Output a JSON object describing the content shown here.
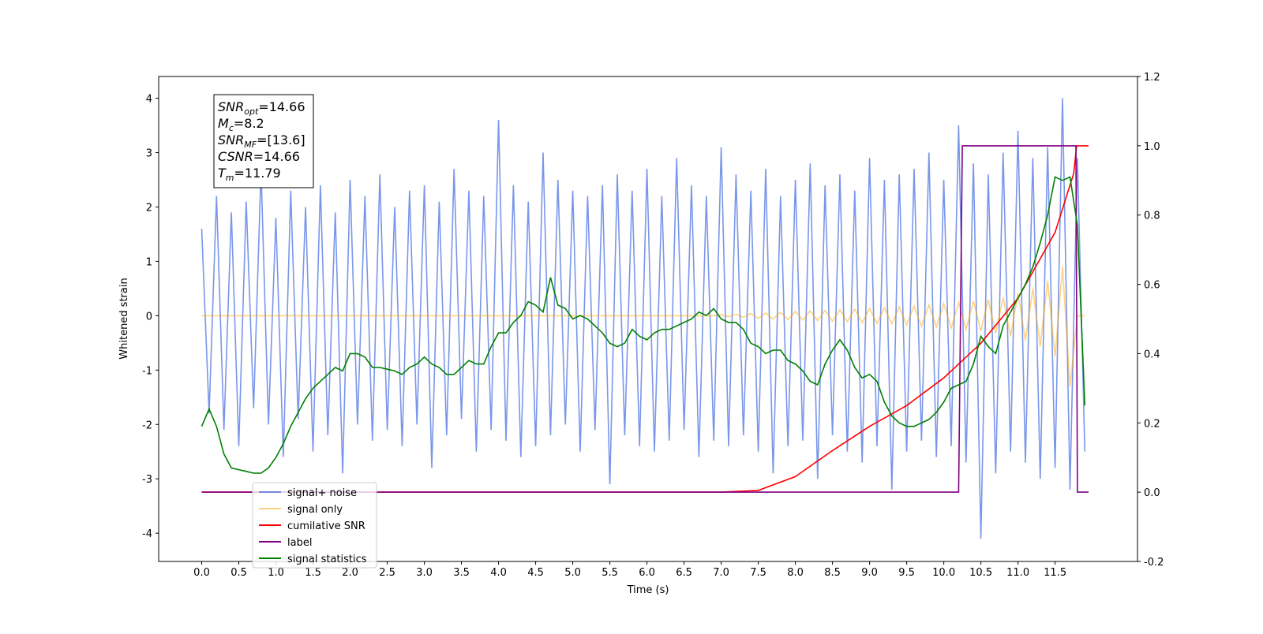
{
  "chart_data": {
    "type": "line",
    "xlabel": "Time (s)",
    "ylabel": "Whitened strain",
    "xlim": [
      -0.58,
      12.61
    ],
    "ylim": [
      -4.52,
      4.4
    ],
    "y2lim": [
      -0.2,
      1.2
    ],
    "xticks": [
      {
        "value": 0,
        "label": "0.0"
      },
      0.5,
      {
        "value": 1,
        "label": "1.0"
      },
      1.5,
      {
        "value": 2,
        "label": "2.0"
      },
      2.5,
      {
        "value": 3,
        "label": "3.0"
      },
      3.5,
      {
        "value": 4,
        "label": "4.0"
      },
      4.5,
      {
        "value": 5,
        "label": "5.0"
      },
      5.5,
      {
        "value": 6,
        "label": "6.0"
      },
      6.5,
      {
        "value": 7,
        "label": "7.0"
      },
      7.5,
      {
        "value": 8,
        "label": "8.0"
      },
      8.5,
      {
        "value": 9,
        "label": "9.0"
      },
      9.5,
      {
        "value": 10,
        "label": "10.0"
      },
      10.5,
      {
        "value": 11,
        "label": "11.0"
      },
      11.5
    ],
    "yticks": [
      -4,
      -3,
      -2,
      -1,
      0,
      1,
      2,
      3,
      4
    ],
    "y2ticks": [
      -0.2,
      {
        "value": 0,
        "label": "0.0"
      },
      0.2,
      0.4,
      0.6,
      0.8,
      {
        "value": 1,
        "label": "1.0"
      },
      1.2
    ],
    "text_box": [
      {
        "name": "SNR",
        "sub": "opt",
        "value": "=14.66"
      },
      {
        "name": "M",
        "sub": "c",
        "value": "=8.2"
      },
      {
        "name": "SNR",
        "sub": "MF",
        "value": "=[13.6]"
      },
      {
        "name": "CSNR",
        "value": "=14.66"
      },
      {
        "name": "T",
        "sub": "m",
        "value": "=11.79"
      }
    ],
    "x": [
      0,
      0.1,
      0.2,
      0.3,
      0.4,
      0.5,
      0.6,
      0.7,
      0.8,
      0.9,
      1,
      1.1,
      1.2,
      1.3,
      1.4,
      1.5,
      1.6,
      1.7,
      1.8,
      1.9,
      2,
      2.1,
      2.2,
      2.3,
      2.4,
      2.5,
      2.6,
      2.7,
      2.8,
      2.9,
      3,
      3.1,
      3.2,
      3.3,
      3.4,
      3.5,
      3.6,
      3.7,
      3.8,
      3.9,
      4,
      4.1,
      4.2,
      4.3,
      4.4,
      4.5,
      4.6,
      4.7,
      4.8,
      4.9,
      5,
      5.1,
      5.2,
      5.3,
      5.4,
      5.5,
      5.6,
      5.7,
      5.8,
      5.9,
      6,
      6.1,
      6.2,
      6.3,
      6.4,
      6.5,
      6.6,
      6.7,
      6.8,
      6.9,
      7,
      7.1,
      7.2,
      7.3,
      7.4,
      7.5,
      7.6,
      7.7,
      7.8,
      7.9,
      8,
      8.1,
      8.2,
      8.3,
      8.4,
      8.5,
      8.6,
      8.7,
      8.8,
      8.9,
      9,
      9.1,
      9.2,
      9.3,
      9.4,
      9.5,
      9.6,
      9.7,
      9.8,
      9.9,
      10,
      10.1,
      10.2,
      10.3,
      10.4,
      10.5,
      10.6,
      10.7,
      10.8,
      10.9,
      11,
      11.1,
      11.2,
      11.3,
      11.4,
      11.5,
      11.6,
      11.7,
      11.8,
      11.9
    ],
    "series": [
      {
        "name": "signal+ noise",
        "color": "royalblue",
        "alpha": 0.7,
        "values": [
          1.6,
          -1.8,
          2.2,
          -2.1,
          1.9,
          -2.4,
          2.1,
          -1.7,
          2.7,
          -2.0,
          1.8,
          -2.6,
          2.3,
          -1.9,
          2.0,
          -2.5,
          2.4,
          -2.2,
          1.9,
          -2.9,
          2.5,
          -2.0,
          2.2,
          -2.3,
          2.6,
          -2.1,
          2.0,
          -2.4,
          2.3,
          -2.0,
          2.4,
          -2.8,
          2.1,
          -2.2,
          2.7,
          -1.9,
          2.3,
          -2.5,
          2.2,
          -2.1,
          3.6,
          -2.3,
          2.4,
          -2.6,
          2.1,
          -2.4,
          3.0,
          -2.2,
          2.5,
          -2.0,
          2.3,
          -2.5,
          2.2,
          -2.1,
          2.4,
          -3.1,
          2.6,
          -2.2,
          2.3,
          -2.4,
          2.7,
          -2.5,
          2.2,
          -2.3,
          2.9,
          -2.1,
          2.4,
          -2.6,
          2.2,
          -2.3,
          3.1,
          -2.4,
          2.6,
          -2.2,
          2.3,
          -2.5,
          2.7,
          -2.9,
          2.2,
          -2.4,
          2.5,
          -2.3,
          2.8,
          -3.0,
          2.4,
          -2.2,
          2.6,
          -2.5,
          2.3,
          -2.7,
          2.9,
          -2.4,
          2.5,
          -3.2,
          2.6,
          -2.5,
          2.7,
          -2.3,
          3.0,
          -2.6,
          2.5,
          -2.4,
          3.5,
          -2.7,
          2.8,
          -4.1,
          2.6,
          -2.9,
          3.0,
          -2.5,
          3.4,
          -2.7,
          2.9,
          -3.0,
          3.1,
          -2.8,
          4.0,
          -3.2,
          2.9,
          -2.5
        ]
      },
      {
        "name": "signal only",
        "color": "orange",
        "alpha": 0.5,
        "values": [
          0,
          0,
          0,
          0,
          0,
          0,
          0,
          0,
          0,
          0,
          0,
          0,
          0,
          0,
          0,
          0,
          0,
          0,
          0,
          0,
          0,
          0,
          0,
          0,
          0,
          0,
          0,
          0,
          0,
          0,
          0,
          0,
          0,
          0,
          0,
          0,
          0,
          0,
          0,
          0,
          0,
          0,
          0,
          0,
          0,
          0,
          0,
          0,
          0,
          0,
          0,
          0,
          0,
          0,
          0,
          0,
          0,
          0,
          0,
          0,
          0,
          0,
          0,
          0,
          0,
          0,
          0,
          0,
          0,
          0,
          0.02,
          -0.02,
          0.03,
          -0.03,
          0.04,
          -0.05,
          0.05,
          -0.06,
          0.06,
          -0.07,
          0.08,
          -0.08,
          0.09,
          -0.09,
          0.1,
          -0.1,
          0.11,
          -0.11,
          0.12,
          -0.13,
          0.13,
          -0.14,
          0.15,
          -0.15,
          0.16,
          -0.17,
          0.18,
          -0.19,
          0.2,
          -0.21,
          0.22,
          -0.23,
          0.24,
          -0.25,
          0.27,
          -0.28,
          0.3,
          -0.32,
          0.34,
          -0.38,
          0.42,
          -0.46,
          0.5,
          -0.56,
          0.64,
          -0.75,
          0.9,
          -1.3,
          0,
          0
        ]
      },
      {
        "name": "cumilative SNR",
        "color": "red",
        "axis": "y2",
        "x": [
          0,
          7,
          7.5,
          8,
          8.5,
          9,
          9.5,
          10,
          10.5,
          11,
          11.5,
          11.75,
          11.79,
          11.95
        ],
        "values": [
          0,
          0,
          0.005,
          0.045,
          0.12,
          0.19,
          0.25,
          0.33,
          0.43,
          0.56,
          0.75,
          0.92,
          1,
          1
        ]
      },
      {
        "name": "label",
        "color": "purple",
        "axis": "y2",
        "x": [
          0,
          10.2,
          10.25,
          11.78,
          11.8,
          11.95
        ],
        "values": [
          0,
          0,
          1,
          1,
          0,
          0
        ]
      },
      {
        "name": "signal statistics",
        "color": "green",
        "axis": "y2",
        "values": [
          0.19,
          0.24,
          0.19,
          0.11,
          0.07,
          0.065,
          0.06,
          0.055,
          0.055,
          0.07,
          0.1,
          0.14,
          0.19,
          0.23,
          0.27,
          0.3,
          0.32,
          0.34,
          0.36,
          0.35,
          0.4,
          0.4,
          0.39,
          0.36,
          0.36,
          0.355,
          0.35,
          0.34,
          0.36,
          0.37,
          0.39,
          0.37,
          0.36,
          0.34,
          0.34,
          0.36,
          0.38,
          0.37,
          0.37,
          0.42,
          0.46,
          0.46,
          0.49,
          0.51,
          0.55,
          0.54,
          0.52,
          0.62,
          0.54,
          0.53,
          0.5,
          0.51,
          0.5,
          0.48,
          0.46,
          0.43,
          0.42,
          0.43,
          0.47,
          0.45,
          0.44,
          0.46,
          0.47,
          0.47,
          0.48,
          0.49,
          0.5,
          0.52,
          0.51,
          0.53,
          0.5,
          0.49,
          0.49,
          0.47,
          0.43,
          0.42,
          0.4,
          0.41,
          0.41,
          0.38,
          0.37,
          0.35,
          0.32,
          0.31,
          0.37,
          0.41,
          0.44,
          0.41,
          0.36,
          0.33,
          0.34,
          0.32,
          0.26,
          0.22,
          0.2,
          0.19,
          0.19,
          0.2,
          0.21,
          0.23,
          0.26,
          0.3,
          0.31,
          0.32,
          0.37,
          0.45,
          0.42,
          0.4,
          0.48,
          0.52,
          0.56,
          0.6,
          0.65,
          0.72,
          0.8,
          0.91,
          0.9,
          0.91,
          0.77,
          0.25
        ]
      }
    ]
  }
}
